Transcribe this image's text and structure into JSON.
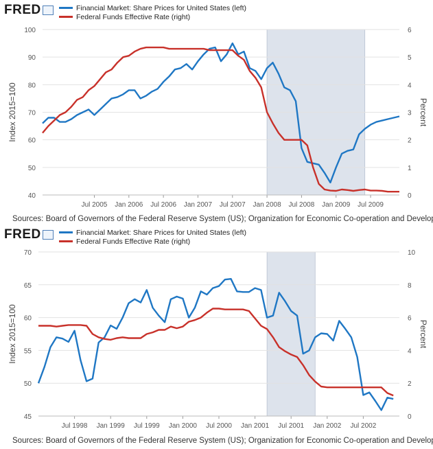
{
  "colors": {
    "blue": "#1f77c4",
    "red": "#c8312a",
    "recession": "#dde3ec",
    "grid": "#e2e2e2"
  },
  "panels": [
    {
      "logo": "FRED",
      "legend": [
        "Financial Market: Share Prices for United States (left)",
        "Federal Funds Effective Rate (right)"
      ],
      "source": "Sources: Board of Governors of the Federal Reserve System (US); Organization for Economic Co-operation and Developm..."
    },
    {
      "logo": "FRED",
      "legend": [
        "Financial Market: Share Prices for United States (left)",
        "Federal Funds Effective Rate (right)"
      ],
      "source": "Sources: Board of Governors of the Federal Reserve System (US); Organization for Economic Co-operation and Developm..."
    }
  ],
  "chart_data": [
    {
      "type": "line",
      "ylabel": "Index 2015=100",
      "y2label": "Percent",
      "xlim": [
        "2004-10-01",
        "2009-12-01"
      ],
      "ylim": [
        40,
        100
      ],
      "y2lim": [
        0,
        6
      ],
      "y_ticks": [
        40,
        50,
        60,
        70,
        80,
        90,
        100
      ],
      "y2_ticks": [
        0,
        1,
        2,
        3,
        4,
        5,
        6
      ],
      "x_ticks": [
        {
          "date": "2005-07-01",
          "label": "Jul 2005"
        },
        {
          "date": "2006-01-01",
          "label": "Jan 2006"
        },
        {
          "date": "2006-07-01",
          "label": "Jul 2006"
        },
        {
          "date": "2007-01-01",
          "label": "Jan 2007"
        },
        {
          "date": "2007-07-01",
          "label": "Jul 2007"
        },
        {
          "date": "2008-01-01",
          "label": "Jan 2008"
        },
        {
          "date": "2008-07-01",
          "label": "Jul 2008"
        },
        {
          "date": "2009-01-01",
          "label": "Jan 2009"
        },
        {
          "date": "2009-07-01",
          "label": "Jul 2009"
        }
      ],
      "recession": [
        "2008-01-01",
        "2009-06-01"
      ],
      "grid": true,
      "legend_position": "top",
      "series": [
        {
          "name": "Financial Market: Share Prices for United States (left)",
          "axis": "left",
          "x": [
            "2004-10",
            "2004-11",
            "2004-12",
            "2005-01",
            "2005-02",
            "2005-03",
            "2005-04",
            "2005-05",
            "2005-06",
            "2005-07",
            "2005-08",
            "2005-09",
            "2005-10",
            "2005-11",
            "2005-12",
            "2006-01",
            "2006-02",
            "2006-03",
            "2006-04",
            "2006-05",
            "2006-06",
            "2006-07",
            "2006-08",
            "2006-09",
            "2006-10",
            "2006-11",
            "2006-12",
            "2007-01",
            "2007-02",
            "2007-03",
            "2007-04",
            "2007-05",
            "2007-06",
            "2007-07",
            "2007-08",
            "2007-09",
            "2007-10",
            "2007-11",
            "2007-12",
            "2008-01",
            "2008-02",
            "2008-03",
            "2008-04",
            "2008-05",
            "2008-06",
            "2008-07",
            "2008-08",
            "2008-09",
            "2008-10",
            "2008-11",
            "2008-12",
            "2009-01",
            "2009-02",
            "2009-03",
            "2009-04",
            "2009-05",
            "2009-06",
            "2009-07",
            "2009-08",
            "2009-09",
            "2009-10",
            "2009-11",
            "2009-12"
          ],
          "values": [
            66,
            68,
            68,
            66.5,
            66.5,
            67.5,
            69,
            70,
            71,
            69,
            71,
            73,
            75,
            75.5,
            76.5,
            78,
            78,
            75,
            76,
            77.5,
            78.5,
            81,
            83,
            85.5,
            86,
            87.5,
            85.5,
            88.5,
            91,
            93,
            93.5,
            88.5,
            91,
            95,
            91,
            92,
            86,
            85,
            82,
            86,
            88,
            84,
            79,
            78,
            74,
            57,
            52,
            51.5,
            51,
            48,
            44.5,
            50,
            55,
            56,
            56.5,
            62,
            64,
            65.5,
            66.5,
            67,
            67.5,
            68,
            68.5
          ]
        },
        {
          "name": "Federal Funds Effective Rate (right)",
          "axis": "right",
          "x": [
            "2004-10",
            "2004-11",
            "2004-12",
            "2005-01",
            "2005-02",
            "2005-03",
            "2005-04",
            "2005-05",
            "2005-06",
            "2005-07",
            "2005-08",
            "2005-09",
            "2005-10",
            "2005-11",
            "2005-12",
            "2006-01",
            "2006-02",
            "2006-03",
            "2006-04",
            "2006-05",
            "2006-06",
            "2006-07",
            "2006-08",
            "2006-09",
            "2006-10",
            "2006-11",
            "2006-12",
            "2007-01",
            "2007-02",
            "2007-03",
            "2007-04",
            "2007-05",
            "2007-06",
            "2007-07",
            "2007-08",
            "2007-09",
            "2007-10",
            "2007-11",
            "2007-12",
            "2008-01",
            "2008-02",
            "2008-03",
            "2008-04",
            "2008-05",
            "2008-06",
            "2008-07",
            "2008-08",
            "2008-09",
            "2008-10",
            "2008-11",
            "2008-12",
            "2009-01",
            "2009-02",
            "2009-03",
            "2009-04",
            "2009-05",
            "2009-06",
            "2009-07",
            "2009-08",
            "2009-09",
            "2009-10",
            "2009-11",
            "2009-12"
          ],
          "values": [
            2.25,
            2.5,
            2.7,
            2.9,
            3.0,
            3.2,
            3.45,
            3.55,
            3.8,
            3.95,
            4.2,
            4.45,
            4.55,
            4.8,
            5.0,
            5.05,
            5.2,
            5.3,
            5.35,
            5.35,
            5.35,
            5.35,
            5.3,
            5.3,
            5.3,
            5.3,
            5.3,
            5.3,
            5.3,
            5.25,
            5.25,
            5.25,
            5.25,
            5.25,
            5.05,
            4.9,
            4.5,
            4.25,
            3.9,
            3.0,
            2.6,
            2.25,
            2.0,
            2.0,
            2.0,
            2.0,
            1.8,
            1.0,
            0.4,
            0.2,
            0.16,
            0.15,
            0.2,
            0.18,
            0.15,
            0.18,
            0.2,
            0.16,
            0.16,
            0.15,
            0.12,
            0.12,
            0.12
          ]
        }
      ]
    },
    {
      "type": "line",
      "ylabel": "Index 2015=100",
      "y2label": "Percent",
      "xlim": [
        "1998-01-01",
        "2003-01-01"
      ],
      "ylim": [
        45,
        70
      ],
      "y2lim": [
        0,
        10
      ],
      "y_ticks": [
        45,
        50,
        55,
        60,
        65,
        70
      ],
      "y2_ticks": [
        0,
        2,
        4,
        6,
        8,
        10
      ],
      "x_ticks": [
        {
          "date": "1998-07-01",
          "label": "Jul 1998"
        },
        {
          "date": "1999-01-01",
          "label": "Jan 1999"
        },
        {
          "date": "1999-07-01",
          "label": "Jul 1999"
        },
        {
          "date": "2000-01-01",
          "label": "Jan 2000"
        },
        {
          "date": "2000-07-01",
          "label": "Jul 2000"
        },
        {
          "date": "2001-01-01",
          "label": "Jan 2001"
        },
        {
          "date": "2001-07-01",
          "label": "Jul 2001"
        },
        {
          "date": "2002-01-01",
          "label": "Jan 2002"
        },
        {
          "date": "2002-07-01",
          "label": "Jul 2002"
        }
      ],
      "recession": [
        "2001-03-01",
        "2001-11-01"
      ],
      "grid": true,
      "legend_position": "top",
      "series": [
        {
          "name": "Financial Market: Share Prices for United States (left)",
          "axis": "left",
          "x": [
            "1998-01",
            "1998-02",
            "1998-03",
            "1998-04",
            "1998-05",
            "1998-06",
            "1998-07",
            "1998-08",
            "1998-09",
            "1998-10",
            "1998-11",
            "1998-12",
            "1999-01",
            "1999-02",
            "1999-03",
            "1999-04",
            "1999-05",
            "1999-06",
            "1999-07",
            "1999-08",
            "1999-09",
            "1999-10",
            "1999-11",
            "1999-12",
            "2000-01",
            "2000-02",
            "2000-03",
            "2000-04",
            "2000-05",
            "2000-06",
            "2000-07",
            "2000-08",
            "2000-09",
            "2000-10",
            "2000-11",
            "2000-12",
            "2001-01",
            "2001-02",
            "2001-03",
            "2001-04",
            "2001-05",
            "2001-06",
            "2001-07",
            "2001-08",
            "2001-09",
            "2001-10",
            "2001-11",
            "2001-12",
            "2002-01",
            "2002-02",
            "2002-03",
            "2002-04",
            "2002-05",
            "2002-06",
            "2002-07",
            "2002-08",
            "2002-09",
            "2002-10",
            "2002-11",
            "2002-12"
          ],
          "values": [
            50,
            52.5,
            55.5,
            57,
            56.8,
            56.3,
            58,
            53.5,
            50.3,
            50.7,
            56.2,
            57,
            58.8,
            58.3,
            60,
            62.2,
            62.8,
            62.3,
            64.2,
            61.5,
            60.3,
            59.3,
            62.8,
            63.2,
            62.9,
            60,
            61.5,
            64,
            63.5,
            64.5,
            64.8,
            65.8,
            65.9,
            64,
            63.9,
            63.9,
            64.5,
            64.2,
            60,
            60.3,
            63.8,
            62.5,
            61,
            60.3,
            54.5,
            55,
            57,
            57.6,
            57.5,
            56.5,
            59.5,
            58.3,
            57,
            54,
            48.2,
            48.6,
            47.3,
            45.9,
            47.8,
            47.6
          ]
        },
        {
          "name": "Federal Funds Effective Rate (right)",
          "axis": "right",
          "x": [
            "1998-01",
            "1998-02",
            "1998-03",
            "1998-04",
            "1998-05",
            "1998-06",
            "1998-07",
            "1998-08",
            "1998-09",
            "1998-10",
            "1998-11",
            "1998-12",
            "1999-01",
            "1999-02",
            "1999-03",
            "1999-04",
            "1999-05",
            "1999-06",
            "1999-07",
            "1999-08",
            "1999-09",
            "1999-10",
            "1999-11",
            "1999-12",
            "2000-01",
            "2000-02",
            "2000-03",
            "2000-04",
            "2000-05",
            "2000-06",
            "2000-07",
            "2000-08",
            "2000-09",
            "2000-10",
            "2000-11",
            "2000-12",
            "2001-01",
            "2001-02",
            "2001-03",
            "2001-04",
            "2001-05",
            "2001-06",
            "2001-07",
            "2001-08",
            "2001-09",
            "2001-10",
            "2001-11",
            "2001-12",
            "2002-01",
            "2002-02",
            "2002-03",
            "2002-04",
            "2002-05",
            "2002-06",
            "2002-07",
            "2002-08",
            "2002-09",
            "2002-10",
            "2002-11",
            "2002-12"
          ],
          "values": [
            5.5,
            5.5,
            5.5,
            5.45,
            5.5,
            5.55,
            5.55,
            5.55,
            5.5,
            5.0,
            4.8,
            4.7,
            4.65,
            4.75,
            4.8,
            4.75,
            4.75,
            4.75,
            5.0,
            5.1,
            5.25,
            5.25,
            5.45,
            5.35,
            5.45,
            5.75,
            5.85,
            6.0,
            6.3,
            6.55,
            6.55,
            6.5,
            6.5,
            6.5,
            6.5,
            6.4,
            5.95,
            5.5,
            5.3,
            4.8,
            4.2,
            3.95,
            3.75,
            3.6,
            3.1,
            2.5,
            2.1,
            1.8,
            1.75,
            1.75,
            1.75,
            1.75,
            1.75,
            1.75,
            1.75,
            1.75,
            1.75,
            1.75,
            1.4,
            1.25
          ]
        }
      ]
    }
  ]
}
